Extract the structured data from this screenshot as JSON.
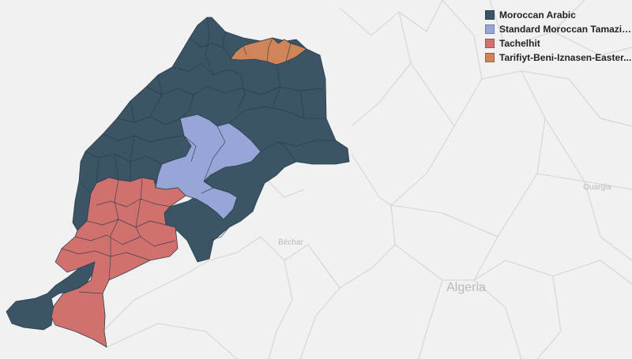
{
  "map": {
    "region_fill": "#f1f1f1",
    "border_color": "#d4d4d4",
    "place_labels": [
      {
        "id": "algeria",
        "text": "Algeria"
      },
      {
        "id": "bechar",
        "text": "Béchar"
      },
      {
        "id": "ouargla",
        "text": "Ouargla"
      }
    ]
  },
  "legend": {
    "items": [
      {
        "label": "Moroccan Arabic",
        "color": "#3b5567"
      },
      {
        "label": "Standard Moroccan Tamazig...",
        "color": "#97a6d6"
      },
      {
        "label": "Tachelhit",
        "color": "#d0716e"
      },
      {
        "label": "Tarifiyt-Beni-Iznasen-Easter...",
        "color": "#cf8558"
      }
    ]
  }
}
